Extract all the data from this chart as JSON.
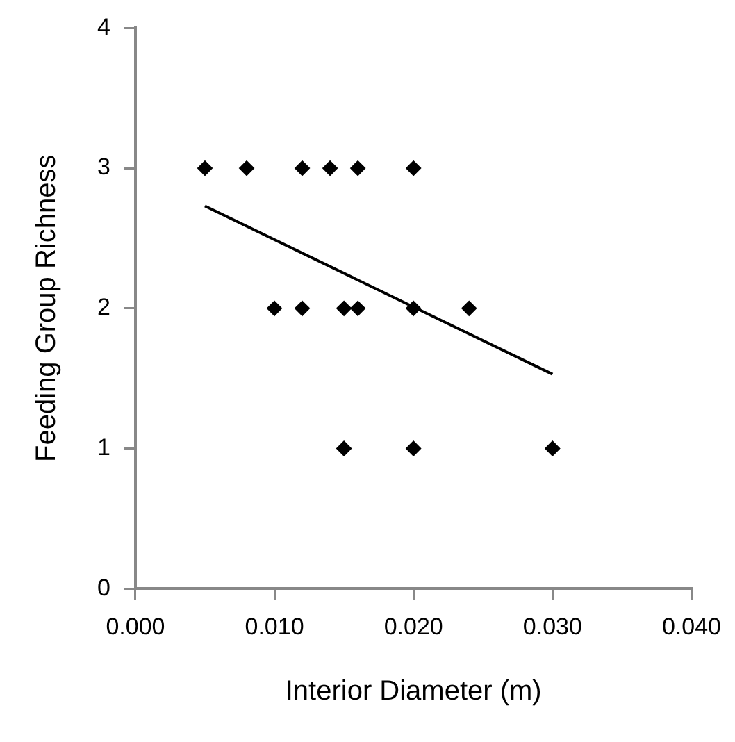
{
  "chart_data": {
    "type": "scatter",
    "xlabel": "Interior Diameter (m)",
    "ylabel": "Feeding Group Richness",
    "xlim": [
      0,
      0.04
    ],
    "xticks": [
      {
        "value": 0,
        "label": "0.000"
      },
      {
        "value": 0.01,
        "label": "0.010"
      },
      {
        "value": 0.02,
        "label": "0.020"
      },
      {
        "value": 0.03,
        "label": "0.030"
      },
      {
        "value": 0.04,
        "label": "0.040"
      }
    ],
    "ylim": [
      0,
      4
    ],
    "yticks": [
      0,
      1,
      2,
      3,
      4
    ],
    "grid": false,
    "legend": false,
    "marker": "diamond",
    "series": [
      {
        "type": "scatter",
        "color": "#000000",
        "x": [
          0.005,
          0.008,
          0.012,
          0.014,
          0.016,
          0.02,
          0.01,
          0.012,
          0.015,
          0.016,
          0.02,
          0.024,
          0.015,
          0.02,
          0.03
        ],
        "values": [
          3,
          3,
          3,
          3,
          3,
          3,
          2,
          2,
          2,
          2,
          2,
          2,
          1,
          1,
          1
        ]
      },
      {
        "type": "line",
        "color": "#000000",
        "x": [
          0.005,
          0.03
        ],
        "values": [
          2.73,
          1.53
        ],
        "marker": "none",
        "line_style": "solid"
      }
    ]
  }
}
